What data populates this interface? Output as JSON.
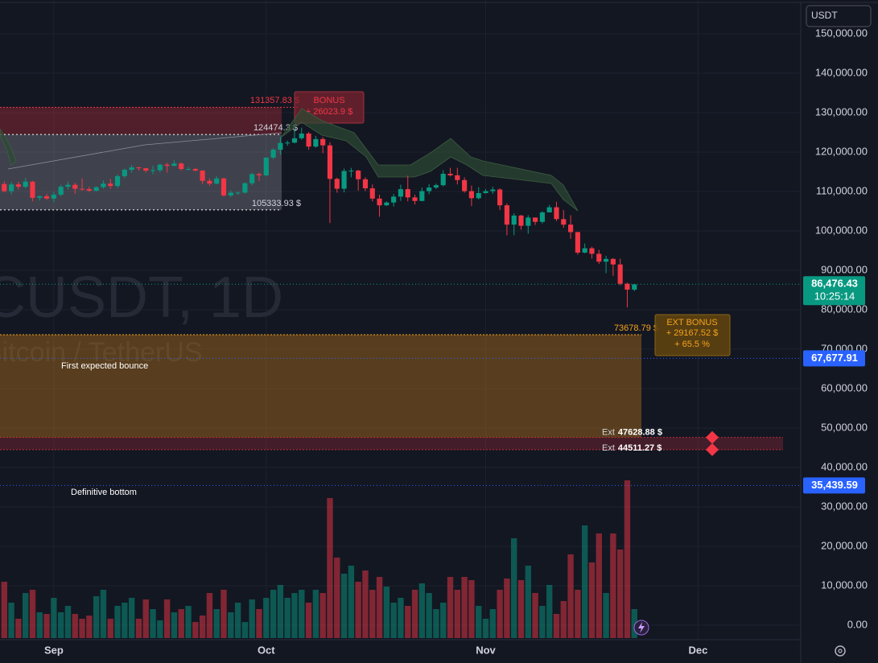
{
  "toolbar": {
    "currency": "USDT"
  },
  "watermark": {
    "symbol": "CUSDT, 1D",
    "description": "Bitcoin / TetherUS"
  },
  "chart_data": {
    "type": "candlestick",
    "up_color": "#089981",
    "down_color": "#f23645",
    "open": [
      111900,
      110100,
      111800,
      111200,
      112500,
      108400,
      108800,
      108200,
      109200,
      111200,
      111700,
      110700,
      110600,
      110200,
      111100,
      112000,
      111400,
      113900,
      115500,
      116100,
      115900,
      115300,
      115400,
      116800,
      116500,
      117100,
      115700,
      115700,
      115300,
      112700,
      112000,
      113300,
      109000,
      109700,
      109700,
      112100,
      114400,
      114100,
      118600,
      120600,
      122300,
      122400,
      123500,
      124700,
      121400,
      123300,
      121700,
      113200,
      110700,
      115200,
      115300,
      113100,
      110800,
      108200,
      106500,
      107200,
      108700,
      110600,
      108500,
      107600,
      110100,
      111000,
      111600,
      114500,
      114100,
      112900,
      110100,
      108300,
      109600,
      110100,
      110500,
      106500,
      101600,
      103900,
      101300,
      103400,
      102300,
      104700,
      106000,
      103000,
      101600,
      99700,
      94500,
      95600,
      94200,
      92200,
      92900,
      91500,
      86600,
      85100
    ],
    "high": [
      112600,
      112400,
      112500,
      113400,
      112700,
      109000,
      109400,
      109900,
      111700,
      112500,
      112200,
      113300,
      111200,
      111300,
      112800,
      113200,
      114300,
      115800,
      116700,
      116300,
      116000,
      116500,
      117000,
      117300,
      117900,
      117400,
      116200,
      116000,
      115400,
      113300,
      113900,
      113500,
      110300,
      110000,
      112300,
      114800,
      114800,
      118600,
      121000,
      123900,
      122900,
      125700,
      126200,
      125100,
      124100,
      123800,
      122500,
      113500,
      115800,
      116000,
      115500,
      113600,
      111800,
      109200,
      107500,
      109400,
      111700,
      114000,
      109200,
      111000,
      111900,
      112000,
      115400,
      116000,
      116000,
      113600,
      111500,
      111100,
      110600,
      111200,
      110800,
      107000,
      104500,
      104100,
      104000,
      103400,
      105000,
      106600,
      107400,
      105300,
      104000,
      99800,
      96800,
      96000,
      95200,
      93700,
      93100,
      93000,
      86900,
      86500
    ],
    "low": [
      109800,
      109300,
      110500,
      110800,
      107500,
      107700,
      107900,
      107300,
      108800,
      110500,
      109400,
      110200,
      109900,
      110000,
      110700,
      110700,
      110900,
      113400,
      114800,
      115300,
      114800,
      114400,
      114900,
      114800,
      116400,
      115300,
      115400,
      115100,
      111900,
      111400,
      111800,
      108700,
      108600,
      109200,
      109500,
      111600,
      112700,
      113900,
      118200,
      119300,
      121600,
      122200,
      123100,
      120600,
      121100,
      119700,
      102000,
      109700,
      109800,
      113600,
      110200,
      110100,
      107500,
      103600,
      106300,
      106200,
      107600,
      107500,
      106700,
      107500,
      109300,
      110600,
      111300,
      113800,
      111800,
      109700,
      106300,
      108000,
      109500,
      109400,
      105300,
      98900,
      98900,
      100300,
      99300,
      101500,
      101900,
      104700,
      102500,
      100800,
      98000,
      94000,
      94300,
      93000,
      91600,
      89300,
      88600,
      86200,
      80600,
      84700
    ],
    "close": [
      110100,
      111800,
      111200,
      112500,
      108400,
      108800,
      108200,
      109200,
      111200,
      111700,
      110700,
      110600,
      110200,
      111100,
      112000,
      111400,
      113900,
      115500,
      116100,
      115900,
      115300,
      115400,
      116800,
      116500,
      117100,
      115700,
      115700,
      115300,
      112700,
      112000,
      113300,
      109000,
      109700,
      109700,
      112100,
      114400,
      114100,
      118600,
      120600,
      122300,
      122400,
      123500,
      124700,
      121400,
      123300,
      121700,
      113200,
      110700,
      115200,
      115300,
      113100,
      110800,
      108200,
      106500,
      107200,
      108700,
      110600,
      108500,
      107600,
      110100,
      111000,
      111600,
      114500,
      114100,
      112900,
      110100,
      108300,
      109600,
      110100,
      110500,
      106500,
      101600,
      103900,
      101300,
      103400,
      102300,
      104700,
      106000,
      103000,
      101600,
      99700,
      94500,
      95600,
      94200,
      92200,
      92900,
      91500,
      86600,
      85100,
      86476
    ],
    "volume": [
      35,
      22,
      12,
      28,
      30,
      16,
      15,
      25,
      16,
      20,
      15,
      12,
      14,
      26,
      30,
      12,
      20,
      22,
      25,
      12,
      24,
      18,
      11,
      24,
      16,
      18,
      20,
      10,
      14,
      28,
      18,
      30,
      16,
      22,
      10,
      24,
      18,
      25,
      30,
      33,
      25,
      28,
      30,
      22,
      30,
      28,
      87,
      50,
      40,
      45,
      35,
      42,
      30,
      38,
      32,
      22,
      25,
      20,
      30,
      34,
      28,
      18,
      22,
      38,
      30,
      38,
      36,
      20,
      12,
      18,
      30,
      37,
      62,
      36,
      45,
      28,
      20,
      33,
      15,
      23,
      52,
      30,
      70,
      47,
      65,
      28,
      65,
      55,
      98,
      18
    ],
    "volume_lim": [
      0,
      100
    ],
    "xlim": [
      -0.6,
      112.5
    ],
    "xticks": [
      {
        "value": 7,
        "label": "Sep"
      },
      {
        "value": 37,
        "label": "Oct"
      },
      {
        "value": 68,
        "label": "Nov"
      },
      {
        "value": 98,
        "label": "Dec"
      }
    ],
    "ylim": [
      -3670,
      158570
    ],
    "yticks": [
      {
        "value": 0,
        "label": "0.00"
      },
      {
        "value": 10000,
        "label": "10,000.00"
      },
      {
        "value": 20000,
        "label": "20,000.00"
      },
      {
        "value": 30000,
        "label": "30,000.00"
      },
      {
        "value": 40000,
        "label": "40,000.00"
      },
      {
        "value": 50000,
        "label": "50,000.00"
      },
      {
        "value": 60000,
        "label": "60,000.00"
      },
      {
        "value": 70000,
        "label": "70,000.00"
      },
      {
        "value": 80000,
        "label": "80,000.00"
      },
      {
        "value": 90000,
        "label": "90,000.00"
      },
      {
        "value": 100000,
        "label": "100,000.00"
      },
      {
        "value": 110000,
        "label": "110,000.00"
      },
      {
        "value": 120000,
        "label": "120,000.00"
      },
      {
        "value": 130000,
        "label": "130,000.00"
      },
      {
        "value": 140000,
        "label": "140,000.00"
      },
      {
        "value": 150000,
        "label": "150,000.00"
      }
    ],
    "grid": true,
    "last_price": {
      "value": 86476.43,
      "label": "86,476.43",
      "countdown": "10:25:14"
    },
    "levels": [
      {
        "value": 67677.91,
        "label": "67,677.91"
      },
      {
        "value": 35439.59,
        "label": "35,439.59"
      }
    ],
    "range_box": {
      "top": {
        "value": 131357.83,
        "label": "131357.83 $"
      },
      "mid": {
        "value": 124474.3,
        "label": "124474.3 $"
      },
      "bottom": {
        "value": 105333.93,
        "label": "105333.93 $"
      },
      "bonus": {
        "title": "BONUS",
        "text": "+ 26023.9 $"
      }
    },
    "ext_zone": {
      "top": {
        "value": 73678.79,
        "label": "73678.79 $"
      },
      "note": "First expected bounce",
      "bonus": {
        "title": "EXT BONUS",
        "lines": [
          "+ 29167.52 $",
          "+ 65.5 %"
        ]
      }
    },
    "ext_levels": [
      {
        "prefix": "Ext",
        "value": 47628.88,
        "label": "47628.88 $"
      },
      {
        "prefix": "Ext",
        "value": 44511.27,
        "label": "44511.27 $"
      }
    ],
    "bottom_note": "Definitive bottom"
  }
}
